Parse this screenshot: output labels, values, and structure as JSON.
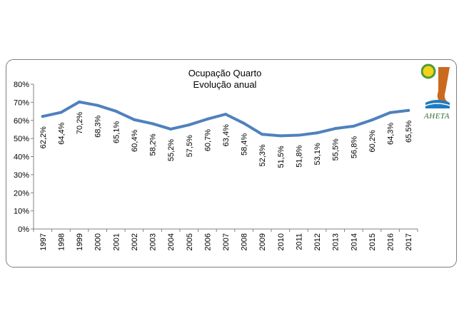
{
  "chart_data": {
    "type": "line",
    "title": "Ocupação Quarto",
    "subtitle": "Evolução anual",
    "categories": [
      "1997",
      "1998",
      "1999",
      "2000",
      "2001",
      "2002",
      "2003",
      "2004",
      "2005",
      "2006",
      "2007",
      "2008",
      "2009",
      "2010",
      "2011",
      "2012",
      "2013",
      "2014",
      "2015",
      "2016",
      "2017"
    ],
    "series": [
      {
        "values": [
          62.2,
          64.4,
          70.2,
          68.3,
          65.1,
          60.4,
          58.2,
          55.2,
          57.5,
          60.7,
          63.4,
          58.4,
          52.3,
          51.5,
          51.8,
          53.1,
          55.5,
          56.8,
          60.2,
          64.3,
          65.5
        ],
        "labels": [
          "62,2%",
          "64,4%",
          "70,2%",
          "68,3%",
          "65,1%",
          "60,4%",
          "58,2%",
          "55,2%",
          "57,5%",
          "60,7%",
          "63,4%",
          "58,4%",
          "52,3%",
          "51,5%",
          "51,8%",
          "53,1%",
          "55,5%",
          "56,8%",
          "60,2%",
          "64,3%",
          "65,5%"
        ],
        "color": "#4f81bd"
      }
    ],
    "yticks": [
      "0%",
      "10%",
      "20%",
      "30%",
      "40%",
      "50%",
      "60%",
      "70%",
      "80%"
    ],
    "ylim": [
      0,
      80
    ],
    "grid": false,
    "legend": "none"
  },
  "logo": {
    "text": "AHETA",
    "icon": "aheta-logo-icon"
  }
}
